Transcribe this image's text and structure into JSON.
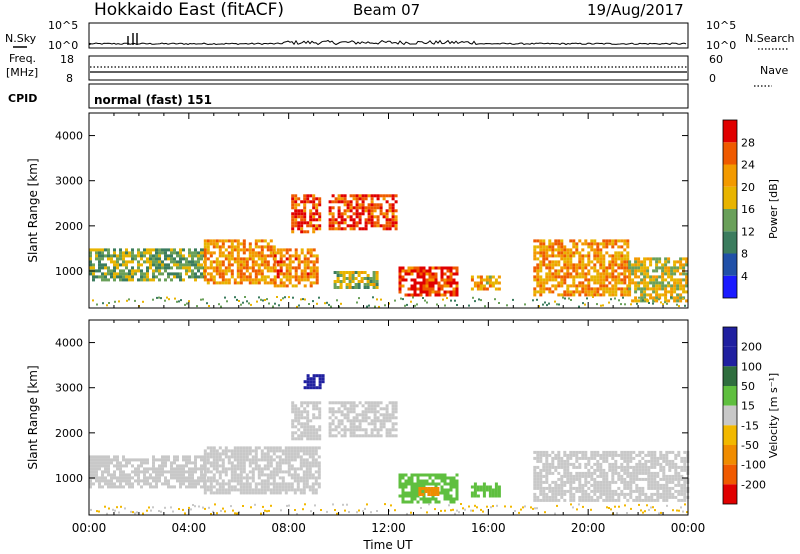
{
  "header": {
    "station": "Hokkaido East (fitACF)",
    "beam": "Beam 07",
    "date": "19/Aug/2017"
  },
  "strip": {
    "nsky_label": "N.Sky",
    "nsearch_label": "N.Search",
    "count_ticks": [
      "10^5",
      "10^0"
    ],
    "freq_label": "Freq.",
    "freq_unit": "[MHz]",
    "freq_ticks": [
      "18",
      "8"
    ],
    "nave_label": "Nave",
    "nave_ticks": [
      "60",
      "0"
    ],
    "cpid_label": "CPID",
    "cpid_value": "normal (fast) 151"
  },
  "colors": {
    "power": [
      "#1a1aff",
      "#2050a8",
      "#3b7c5e",
      "#6aa05a",
      "#e8b400",
      "#f39a00",
      "#ef5a00",
      "#e00000"
    ],
    "velocity_pos": [
      "#2020a0",
      "#2f6e3e",
      "#5fbf3f",
      "#a8c85a"
    ],
    "velocity_ground": "#c8c8c8",
    "velocity_neg": [
      "#f2b800",
      "#f08c00",
      "#f05a00",
      "#e00000"
    ]
  },
  "chart_data": [
    {
      "type": "heatmap",
      "quantity": "Power",
      "xlabel": "",
      "ylabel": "Slant Range [km]",
      "xlim": [
        0,
        24
      ],
      "ylim": [
        180,
        4500
      ],
      "y_ticks": [
        "1000",
        "2000",
        "3000",
        "4000"
      ],
      "colorbar_label": "Power [dB]",
      "colorbar_ticks": [
        "4",
        "8",
        "12",
        "16",
        "20",
        "24",
        "28"
      ],
      "colorbar_range": [
        0,
        30
      ],
      "regions": [
        {
          "t": [
            0.0,
            4.6
          ],
          "r": [
            800,
            1500
          ],
          "value": 13
        },
        {
          "t": [
            4.6,
            7.4
          ],
          "r": [
            750,
            1700
          ],
          "value": 21
        },
        {
          "t": [
            7.4,
            9.2
          ],
          "r": [
            700,
            1500
          ],
          "value": 22
        },
        {
          "t": [
            8.1,
            9.3
          ],
          "r": [
            1900,
            2700
          ],
          "value": 25
        },
        {
          "t": [
            9.6,
            12.3
          ],
          "r": [
            1950,
            2700
          ],
          "value": 25
        },
        {
          "t": [
            12.4,
            14.8
          ],
          "r": [
            500,
            1100
          ],
          "value": 26
        },
        {
          "t": [
            15.3,
            16.5
          ],
          "r": [
            600,
            900
          ],
          "value": 19
        },
        {
          "t": [
            17.8,
            21.6
          ],
          "r": [
            500,
            1700
          ],
          "value": 21
        },
        {
          "t": [
            21.6,
            24.0
          ],
          "r": [
            350,
            1300
          ],
          "value": 17
        },
        {
          "t": [
            9.8,
            11.6
          ],
          "r": [
            650,
            1000
          ],
          "value": 15
        }
      ]
    },
    {
      "type": "heatmap",
      "quantity": "Velocity",
      "xlabel": "Time UT",
      "ylabel": "Slant Range [km]",
      "xlim": [
        0,
        24
      ],
      "ylim": [
        180,
        4500
      ],
      "x_ticks": [
        "00:00",
        "04:00",
        "08:00",
        "12:00",
        "16:00",
        "20:00",
        "00:00"
      ],
      "y_ticks": [
        "1000",
        "2000",
        "3000",
        "4000"
      ],
      "colorbar_label": "Velocity [m s⁻¹]",
      "colorbar_ticks": [
        "200",
        "100",
        "50",
        "15",
        "-15",
        "-50",
        "-100",
        "-200"
      ],
      "colorbar_range": [
        -250,
        250
      ],
      "regions": [
        {
          "t": [
            0.0,
            4.6
          ],
          "r": [
            800,
            1500
          ],
          "value": 0
        },
        {
          "t": [
            4.6,
            9.2
          ],
          "r": [
            700,
            1700
          ],
          "value": 0
        },
        {
          "t": [
            8.1,
            9.3
          ],
          "r": [
            1900,
            2700
          ],
          "value": 0
        },
        {
          "t": [
            9.6,
            12.3
          ],
          "r": [
            1950,
            2700
          ],
          "value": 0
        },
        {
          "t": [
            12.4,
            14.8
          ],
          "r": [
            500,
            1100
          ],
          "value": 55
        },
        {
          "t": [
            15.3,
            16.5
          ],
          "r": [
            600,
            900
          ],
          "value": 60
        },
        {
          "t": [
            17.8,
            24.0
          ],
          "r": [
            500,
            1600
          ],
          "value": 0
        },
        {
          "t": [
            13.2,
            14.0
          ],
          "r": [
            650,
            800
          ],
          "value": -60
        },
        {
          "t": [
            8.6,
            9.4
          ],
          "r": [
            3000,
            3300
          ],
          "value": 160
        }
      ]
    }
  ]
}
